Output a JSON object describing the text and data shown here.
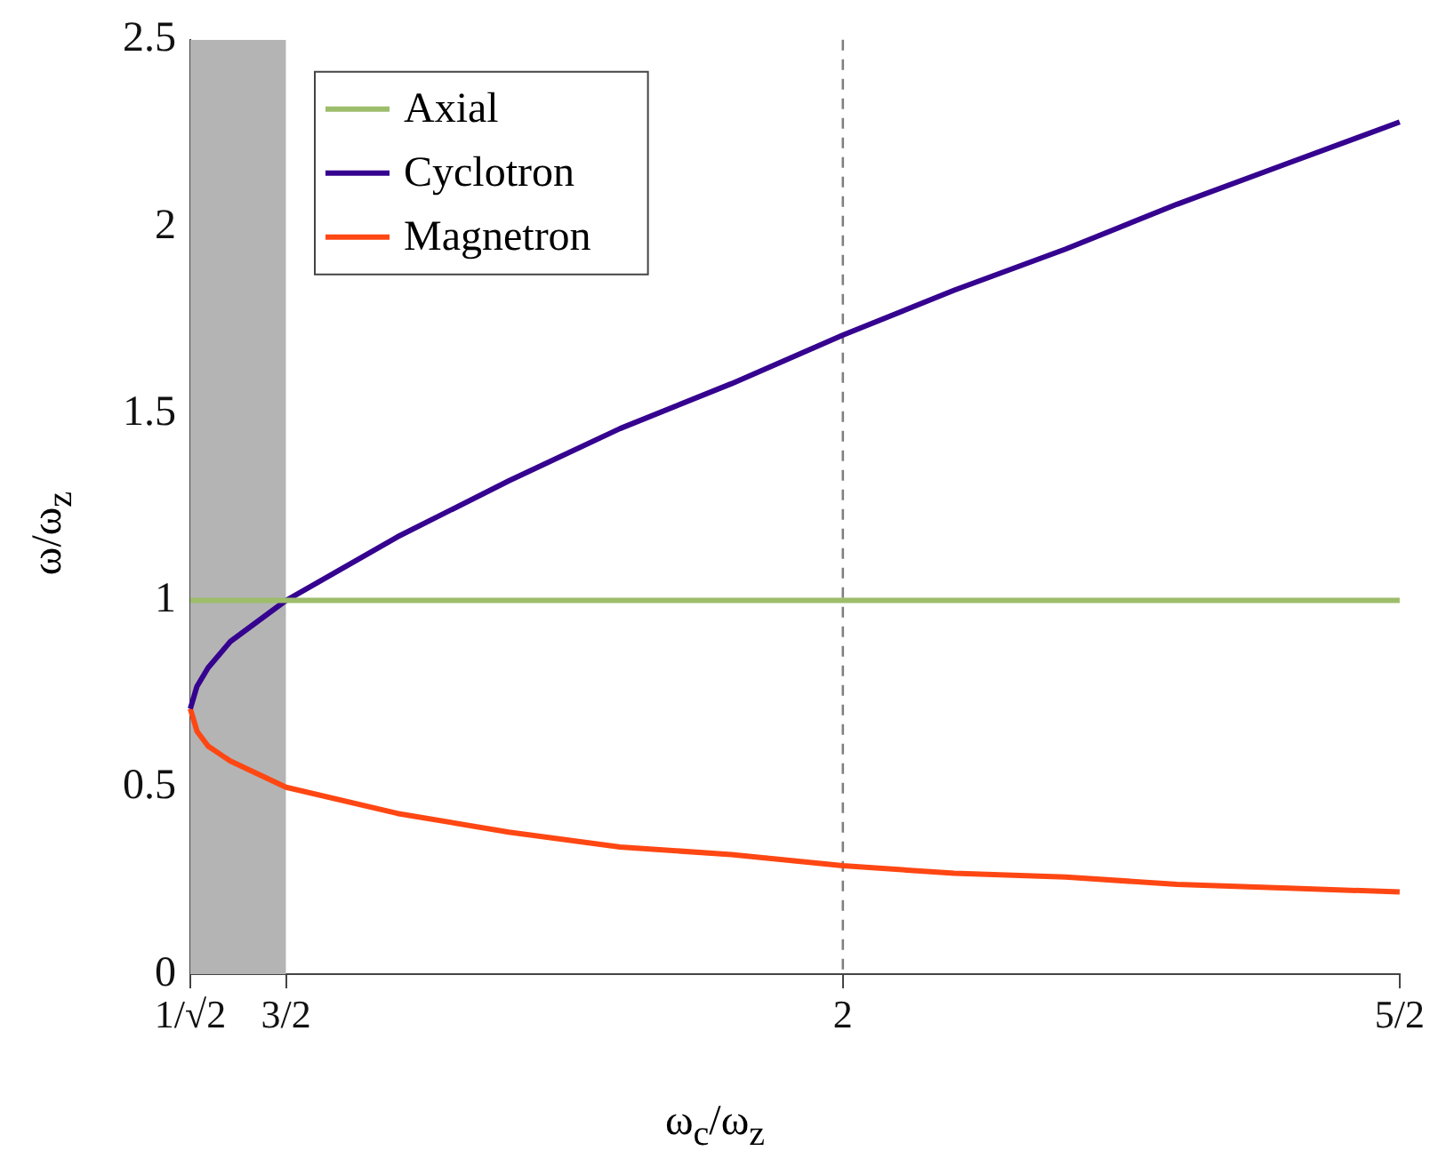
{
  "chart_data": {
    "type": "line",
    "xlabel": "ω$_{c}$/ω$_{z}$",
    "ylabel": "ω/ω$_{z}$",
    "xlim": [
      1.414,
      2.5
    ],
    "xticks": [
      {
        "value": 1.414,
        "label": "1/√2"
      },
      {
        "value": 1.5,
        "label": "3/2"
      },
      2,
      {
        "value": 2.5,
        "label": "5/2"
      }
    ],
    "ylim": [
      0,
      2.5
    ],
    "yticks": [
      0,
      0.5,
      1,
      1.5,
      2,
      2.5
    ],
    "grid": false,
    "legend": "top left",
    "marker": "none",
    "series": [
      {
        "name": "Axial",
        "color": "#9dbd6b",
        "x": [
          1.414,
          2.5
        ],
        "values": [
          1,
          1
        ]
      },
      {
        "name": "Cyclotron",
        "color": "#35038f",
        "x": [
          1.414,
          1.42,
          1.43,
          1.45,
          1.5,
          1.6,
          1.7,
          1.8,
          1.9,
          2.0,
          2.1,
          2.2,
          2.3,
          2.4,
          2.5
        ],
        "values": [
          0.71,
          0.77,
          0.82,
          0.89,
          1.0,
          1.17,
          1.32,
          1.46,
          1.58,
          1.71,
          1.83,
          1.94,
          2.06,
          2.17,
          2.28
        ]
      },
      {
        "name": "Magnetron",
        "color": "#ff4713",
        "x": [
          1.414,
          1.42,
          1.43,
          1.45,
          1.5,
          1.6,
          1.7,
          1.8,
          1.9,
          2.0,
          2.1,
          2.2,
          2.3,
          2.4,
          2.5
        ],
        "values": [
          0.71,
          0.65,
          0.61,
          0.57,
          0.5,
          0.43,
          0.38,
          0.34,
          0.32,
          0.29,
          0.27,
          0.26,
          0.24,
          0.23,
          0.22
        ]
      }
    ],
    "ref_lines": [
      {
        "axis": "x",
        "value": 2,
        "color": "#808080",
        "line_style": "dashed"
      }
    ],
    "bands": [
      {
        "axis": "x",
        "from": 1.414,
        "to": 1.5,
        "color": "#b4b4b4"
      }
    ]
  }
}
